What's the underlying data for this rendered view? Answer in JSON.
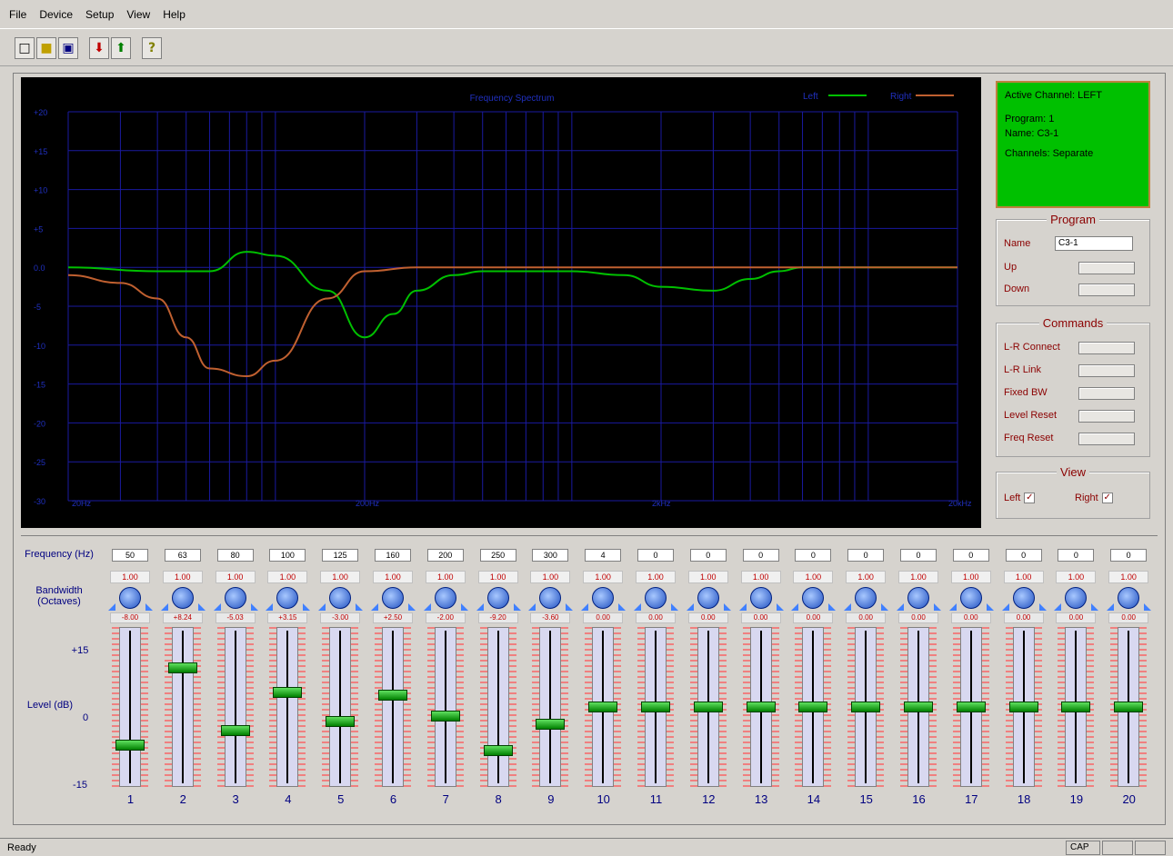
{
  "menu": [
    "File",
    "Device",
    "Setup",
    "View",
    "Help"
  ],
  "toolbar": {
    "icons": [
      "new-file-icon",
      "open-folder-icon",
      "save-disk-icon",
      "download-arrow-icon",
      "upload-arrow-icon",
      "help-icon"
    ]
  },
  "chart_data": {
    "type": "line",
    "title": "Frequency Spectrum",
    "xlabel": "",
    "ylabel": "",
    "x_ticks": [
      "20Hz",
      "200Hz",
      "2kHz",
      "20kHz"
    ],
    "y_ticks": [
      "+20",
      "+15",
      "+10",
      "+5",
      "0.0",
      "-5",
      "-10",
      "-15",
      "-20",
      "-25",
      "-30"
    ],
    "ylim": [
      -30,
      20
    ],
    "xscale": "log",
    "xlim": [
      20,
      20000
    ],
    "grid": true,
    "legend": "top-right",
    "series": [
      {
        "name": "Left",
        "color": "#00c000",
        "x": [
          20,
          40,
          60,
          80,
          100,
          150,
          200,
          250,
          300,
          400,
          500,
          700,
          1000,
          1500,
          2000,
          3000,
          4000,
          5000,
          6000,
          8000,
          10000,
          20000
        ],
        "y": [
          0,
          -0.5,
          -0.5,
          2,
          1.5,
          -3,
          -9,
          -6,
          -3,
          -1,
          -0.5,
          -0.5,
          -0.5,
          -1,
          -2.5,
          -3,
          -1.5,
          -0.5,
          0,
          0,
          0,
          0
        ]
      },
      {
        "name": "Right",
        "color": "#c06030",
        "x": [
          20,
          30,
          40,
          50,
          60,
          80,
          100,
          150,
          200,
          300,
          500,
          1000,
          20000
        ],
        "y": [
          -1,
          -2,
          -4,
          -9,
          -13,
          -14,
          -12,
          -4,
          -0.5,
          0,
          0,
          0,
          0
        ]
      }
    ]
  },
  "status": {
    "active_channel": "Active Channel: LEFT",
    "program": "Program: 1",
    "name": "Name: C3-1",
    "channels": "Channels: Separate"
  },
  "program_group": {
    "title": "Program",
    "name_label": "Name",
    "name_value": "C3-1",
    "up_label": "Up",
    "down_label": "Down"
  },
  "commands_group": {
    "title": "Commands",
    "items": [
      "L-R Connect",
      "L-R Link",
      "Fixed BW",
      "Level Reset",
      "Freq Reset"
    ]
  },
  "view_group": {
    "title": "View",
    "left_label": "Left",
    "right_label": "Right",
    "left_checked": true,
    "right_checked": true
  },
  "eq_labels": {
    "frequency": "Frequency (Hz)",
    "bandwidth": "Bandwidth (Octaves)",
    "level": "Level (dB)",
    "top": "+15",
    "mid": "0",
    "bottom": "-15"
  },
  "bands": [
    {
      "num": "1",
      "freq": "50",
      "bw": "1.00",
      "lvl": "-8.00",
      "level": -8
    },
    {
      "num": "2",
      "freq": "63",
      "bw": "1.00",
      "lvl": "+8.24",
      "level": 8.24
    },
    {
      "num": "3",
      "freq": "80",
      "bw": "1.00",
      "lvl": "-5.03",
      "level": -5
    },
    {
      "num": "4",
      "freq": "100",
      "bw": "1.00",
      "lvl": "+3.15",
      "level": 3.15
    },
    {
      "num": "5",
      "freq": "125",
      "bw": "1.00",
      "lvl": "-3.00",
      "level": -3
    },
    {
      "num": "6",
      "freq": "160",
      "bw": "1.00",
      "lvl": "+2.50",
      "level": 2.5
    },
    {
      "num": "7",
      "freq": "200",
      "bw": "1.00",
      "lvl": "-2.00",
      "level": -2
    },
    {
      "num": "8",
      "freq": "250",
      "bw": "1.00",
      "lvl": "-9.20",
      "level": -9.2
    },
    {
      "num": "9",
      "freq": "300",
      "bw": "1.00",
      "lvl": "-3.60",
      "level": -3.6
    },
    {
      "num": "10",
      "freq": "4",
      "bw": "1.00",
      "lvl": "0.00",
      "level": 0
    },
    {
      "num": "11",
      "freq": "0",
      "bw": "1.00",
      "lvl": "0.00",
      "level": 0
    },
    {
      "num": "12",
      "freq": "0",
      "bw": "1.00",
      "lvl": "0.00",
      "level": 0
    },
    {
      "num": "13",
      "freq": "0",
      "bw": "1.00",
      "lvl": "0.00",
      "level": 0
    },
    {
      "num": "14",
      "freq": "0",
      "bw": "1.00",
      "lvl": "0.00",
      "level": 0
    },
    {
      "num": "15",
      "freq": "0",
      "bw": "1.00",
      "lvl": "0.00",
      "level": 0
    },
    {
      "num": "16",
      "freq": "0",
      "bw": "1.00",
      "lvl": "0.00",
      "level": 0
    },
    {
      "num": "17",
      "freq": "0",
      "bw": "1.00",
      "lvl": "0.00",
      "level": 0
    },
    {
      "num": "18",
      "freq": "0",
      "bw": "1.00",
      "lvl": "0.00",
      "level": 0
    },
    {
      "num": "19",
      "freq": "0",
      "bw": "1.00",
      "lvl": "0.00",
      "level": 0
    },
    {
      "num": "20",
      "freq": "0",
      "bw": "1.00",
      "lvl": "0.00",
      "level": 0
    }
  ],
  "statusbar": {
    "text": "Ready",
    "cap": "CAP"
  }
}
